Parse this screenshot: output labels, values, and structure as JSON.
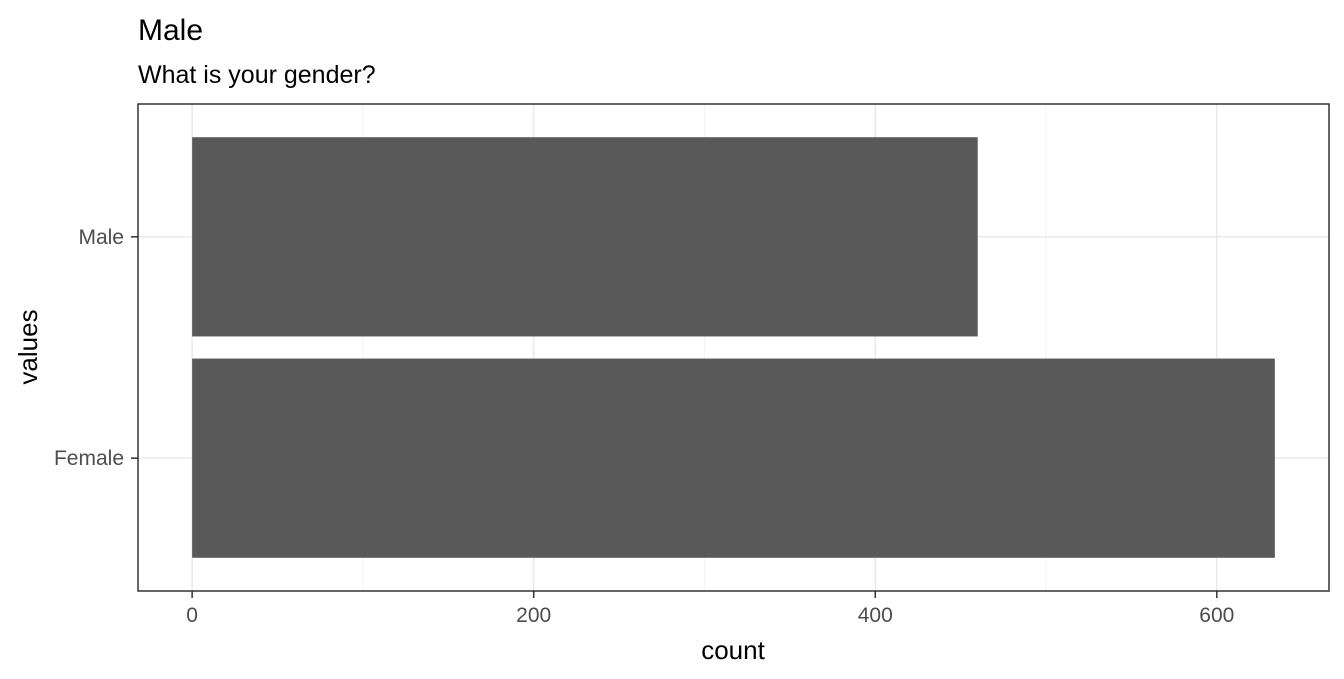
{
  "chart_data": {
    "type": "bar",
    "orientation": "horizontal",
    "title": "Male",
    "subtitle": "What is your gender?",
    "xlabel": "count",
    "ylabel": "values",
    "categories": [
      "Male",
      "Female"
    ],
    "values": [
      460,
      634
    ],
    "xlim": [
      -31.7,
      665.7
    ],
    "xticks": [
      0,
      200,
      400,
      600
    ],
    "xtick_labels": [
      "0",
      "200",
      "400",
      "600"
    ],
    "xminor": [
      100,
      300,
      500
    ],
    "bar_color": "#595959",
    "grid": true
  }
}
